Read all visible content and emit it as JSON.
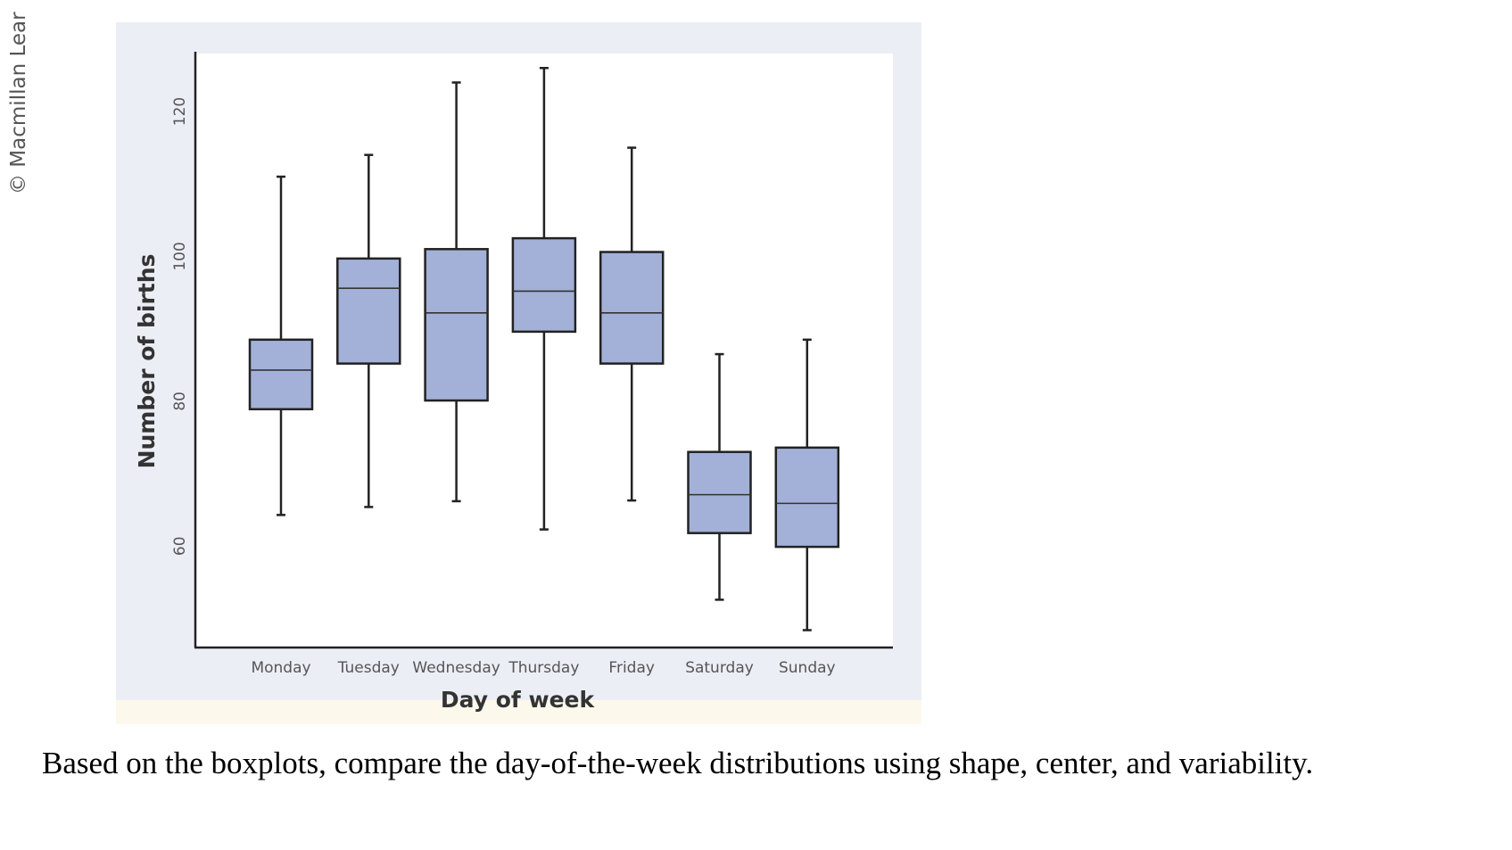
{
  "copyright": "© Macmillan Lear",
  "question": "Based on the boxplots, compare the day-of-the-week distributions using shape, center, and variability.",
  "colors": {
    "panel_bg": "#eceef6",
    "plot_bg": "#ffffff",
    "box_fill": "#a3b0d8",
    "stroke": "#222222",
    "footer_strip": "#fdf8ec"
  },
  "chart_data": {
    "type": "boxplot",
    "title": "",
    "xlabel": "Day of week",
    "ylabel": "Number of births",
    "ylim": [
      46,
      128
    ],
    "yticks": [
      60,
      80,
      100,
      120
    ],
    "grid": false,
    "categories": [
      "Monday",
      "Tuesday",
      "Wednesday",
      "Thursday",
      "Friday",
      "Saturday",
      "Sunday"
    ],
    "boxes": [
      {
        "min": 64.3,
        "q1": 78.9,
        "median": 84.3,
        "q3": 88.5,
        "max": 111.0
      },
      {
        "min": 65.4,
        "q1": 85.2,
        "median": 95.6,
        "q3": 99.7,
        "max": 114.0
      },
      {
        "min": 66.2,
        "q1": 80.1,
        "median": 92.2,
        "q3": 101.0,
        "max": 124.0
      },
      {
        "min": 62.3,
        "q1": 89.6,
        "median": 95.2,
        "q3": 102.5,
        "max": 126.0
      },
      {
        "min": 66.3,
        "q1": 85.2,
        "median": 92.2,
        "q3": 100.6,
        "max": 115.0
      },
      {
        "min": 52.6,
        "q1": 61.8,
        "median": 67.1,
        "q3": 73.0,
        "max": 86.5
      },
      {
        "min": 48.4,
        "q1": 59.9,
        "median": 65.9,
        "q3": 73.6,
        "max": 88.5
      }
    ]
  }
}
